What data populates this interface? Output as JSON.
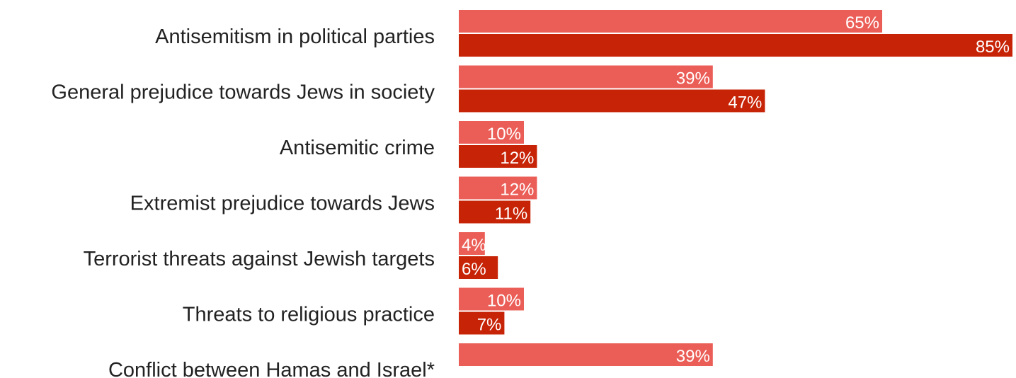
{
  "chart_data": {
    "type": "bar",
    "orientation": "horizontal",
    "categories": [
      "Antisemitism in political parties",
      "General prejudice towards Jews in society",
      "Antisemitic crime",
      "Extremist prejudice towards Jews",
      "Terrorist threats against Jewish targets",
      "Threats to religious practice",
      "Conflict between Hamas and Israel*"
    ],
    "series": [
      {
        "values": [
          65,
          39,
          10,
          12,
          4,
          10,
          39
        ],
        "labels": [
          "65%",
          "39%",
          "10%",
          "12%",
          "4%",
          "10%",
          "39%"
        ],
        "color": "#eb5e57"
      },
      {
        "values": [
          85,
          47,
          12,
          11,
          6,
          7,
          null
        ],
        "labels": [
          "85%",
          "47%",
          "12%",
          "11%",
          "6%",
          "7%",
          null
        ],
        "color": "#c72306"
      }
    ],
    "title": "",
    "xlabel": "",
    "ylabel": "",
    "xlim": [
      0,
      85
    ],
    "grid": false,
    "legend": "none",
    "value_suffix": "%"
  }
}
